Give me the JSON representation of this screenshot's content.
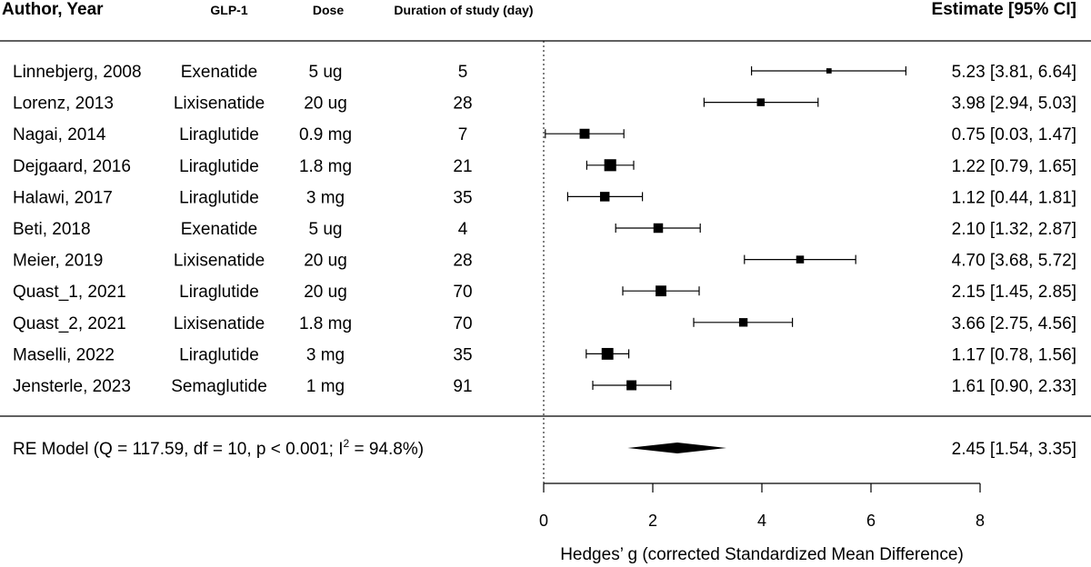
{
  "chart_data": {
    "type": "forest",
    "headers": {
      "author": "Author, Year",
      "glp1": "GLP-1",
      "dose": "Dose",
      "duration": "Duration of study (day)",
      "estimate": "Estimate [95% CI]"
    },
    "studies": [
      {
        "author": "Linnebjerg, 2008",
        "glp1": "Exenatide",
        "dose": "5 ug",
        "duration": "5",
        "est": 5.23,
        "lo": 3.81,
        "hi": 6.64,
        "ci_text": "5.23 [3.81, 6.64]",
        "weight": 0.25
      },
      {
        "author": "Lorenz, 2013",
        "glp1": "Lixisenatide",
        "dose": "20 ug",
        "duration": "28",
        "est": 3.98,
        "lo": 2.94,
        "hi": 5.03,
        "ci_text": "3.98 [2.94, 5.03]",
        "weight": 0.5
      },
      {
        "author": "Nagai, 2014",
        "glp1": "Liraglutide",
        "dose": "0.9 mg",
        "duration": "7",
        "est": 0.75,
        "lo": 0.03,
        "hi": 1.47,
        "ci_text": "0.75 [0.03, 1.47]",
        "weight": 0.72
      },
      {
        "author": "Dejgaard, 2016",
        "glp1": "Liraglutide",
        "dose": "1.8 mg",
        "duration": "21",
        "est": 1.22,
        "lo": 0.79,
        "hi": 1.65,
        "ci_text": "1.22 [0.79, 1.65]",
        "weight": 0.92
      },
      {
        "author": "Halawi, 2017",
        "glp1": "Liraglutide",
        "dose": "3 mg",
        "duration": "35",
        "est": 1.12,
        "lo": 0.44,
        "hi": 1.81,
        "ci_text": "1.12 [0.44, 1.81]",
        "weight": 0.68
      },
      {
        "author": "Beti, 2018",
        "glp1": "Exenatide",
        "dose": "5 ug",
        "duration": "4",
        "est": 2.1,
        "lo": 1.32,
        "hi": 2.87,
        "ci_text": "2.10 [1.32, 2.87]",
        "weight": 0.68
      },
      {
        "author": "Meier, 2019",
        "glp1": "Lixisenatide",
        "dose": "20 ug",
        "duration": "28",
        "est": 4.7,
        "lo": 3.68,
        "hi": 5.72,
        "ci_text": "4.70 [3.68, 5.72]",
        "weight": 0.5
      },
      {
        "author": "Quast_1, 2021",
        "glp1": "Liraglutide",
        "dose": "20 ug",
        "duration": "70",
        "est": 2.15,
        "lo": 1.45,
        "hi": 2.85,
        "ci_text": "2.15 [1.45, 2.85]",
        "weight": 0.8
      },
      {
        "author": "Quast_2, 2021",
        "glp1": "Lixisenatide",
        "dose": "1.8 mg",
        "duration": "70",
        "est": 3.66,
        "lo": 2.75,
        "hi": 4.56,
        "ci_text": "3.66 [2.75, 4.56]",
        "weight": 0.58
      },
      {
        "author": "Maselli, 2022",
        "glp1": "Liraglutide",
        "dose": "3 mg",
        "duration": "35",
        "est": 1.17,
        "lo": 0.78,
        "hi": 1.56,
        "ci_text": "1.17 [0.78, 1.56]",
        "weight": 0.9
      },
      {
        "author": "Jensterle, 2023",
        "glp1": "Semaglutide",
        "dose": "1 mg",
        "duration": "91",
        "est": 1.61,
        "lo": 0.9,
        "hi": 2.33,
        "ci_text": "1.61 [0.90, 2.33]",
        "weight": 0.72
      }
    ],
    "summary": {
      "label_prefix": "RE Model (Q = 117.59, df = 10, p < 0.001; I",
      "label_sup": "2",
      "label_suffix": " = 94.8%)",
      "est": 2.45,
      "lo": 1.54,
      "hi": 3.35,
      "ci_text": "2.45 [1.54, 3.35]"
    },
    "xlim": [
      0,
      8
    ],
    "xticks": [
      0,
      2,
      4,
      6,
      8
    ],
    "xlabel": "Hedges’ g (corrected Standardized Mean Difference)",
    "reference_line": 0
  }
}
